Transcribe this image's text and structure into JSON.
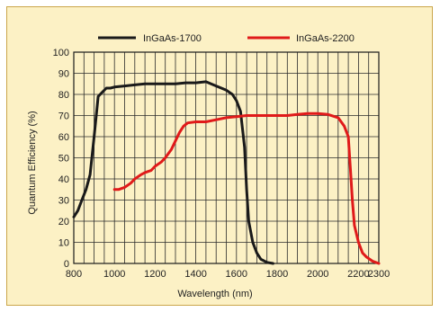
{
  "chart_data": {
    "type": "line",
    "title": "",
    "xlabel": "Wavelength (nm)",
    "ylabel": "Quantum Efficiency (%)",
    "xlim": [
      800,
      2300
    ],
    "ylim": [
      0,
      100
    ],
    "grid": true,
    "legend_position": "top",
    "x_ticks": [
      800,
      1000,
      1200,
      1400,
      1600,
      1800,
      2000,
      2200,
      2300
    ],
    "y_ticks": [
      0,
      10,
      20,
      30,
      40,
      50,
      60,
      70,
      80,
      90,
      100
    ],
    "series": [
      {
        "name": "InGaAs-1700",
        "color": "#1a1a1a",
        "points": [
          [
            800,
            22
          ],
          [
            820,
            25
          ],
          [
            840,
            30
          ],
          [
            860,
            35
          ],
          [
            880,
            42
          ],
          [
            900,
            60
          ],
          [
            920,
            79
          ],
          [
            940,
            81
          ],
          [
            960,
            83
          ],
          [
            980,
            83
          ],
          [
            1000,
            83.5
          ],
          [
            1050,
            84
          ],
          [
            1100,
            84.5
          ],
          [
            1150,
            85
          ],
          [
            1200,
            85
          ],
          [
            1250,
            85
          ],
          [
            1300,
            85
          ],
          [
            1350,
            85.5
          ],
          [
            1400,
            85.5
          ],
          [
            1450,
            86
          ],
          [
            1500,
            84
          ],
          [
            1550,
            82
          ],
          [
            1580,
            80
          ],
          [
            1600,
            77
          ],
          [
            1620,
            72
          ],
          [
            1640,
            55
          ],
          [
            1650,
            35
          ],
          [
            1660,
            20
          ],
          [
            1680,
            10
          ],
          [
            1700,
            5
          ],
          [
            1720,
            2
          ],
          [
            1750,
            0.5
          ],
          [
            1780,
            0
          ]
        ]
      },
      {
        "name": "InGaAs-2200",
        "color": "#e01a1a",
        "points": [
          [
            1000,
            35
          ],
          [
            1020,
            35
          ],
          [
            1050,
            36
          ],
          [
            1080,
            38
          ],
          [
            1100,
            40
          ],
          [
            1130,
            42
          ],
          [
            1150,
            43
          ],
          [
            1180,
            44
          ],
          [
            1200,
            46
          ],
          [
            1230,
            48
          ],
          [
            1250,
            50
          ],
          [
            1280,
            54
          ],
          [
            1300,
            58
          ],
          [
            1320,
            62
          ],
          [
            1340,
            65
          ],
          [
            1360,
            66.5
          ],
          [
            1400,
            67
          ],
          [
            1450,
            67
          ],
          [
            1500,
            68
          ],
          [
            1550,
            69
          ],
          [
            1600,
            69.5
          ],
          [
            1650,
            70
          ],
          [
            1700,
            70
          ],
          [
            1750,
            70
          ],
          [
            1800,
            70
          ],
          [
            1850,
            70
          ],
          [
            1900,
            70.5
          ],
          [
            1950,
            71
          ],
          [
            2000,
            71
          ],
          [
            2050,
            70.5
          ],
          [
            2100,
            69
          ],
          [
            2130,
            65
          ],
          [
            2150,
            60
          ],
          [
            2160,
            45
          ],
          [
            2170,
            30
          ],
          [
            2180,
            18
          ],
          [
            2200,
            10
          ],
          [
            2220,
            5
          ],
          [
            2240,
            3
          ],
          [
            2270,
            1
          ],
          [
            2300,
            0
          ]
        ]
      }
    ]
  }
}
